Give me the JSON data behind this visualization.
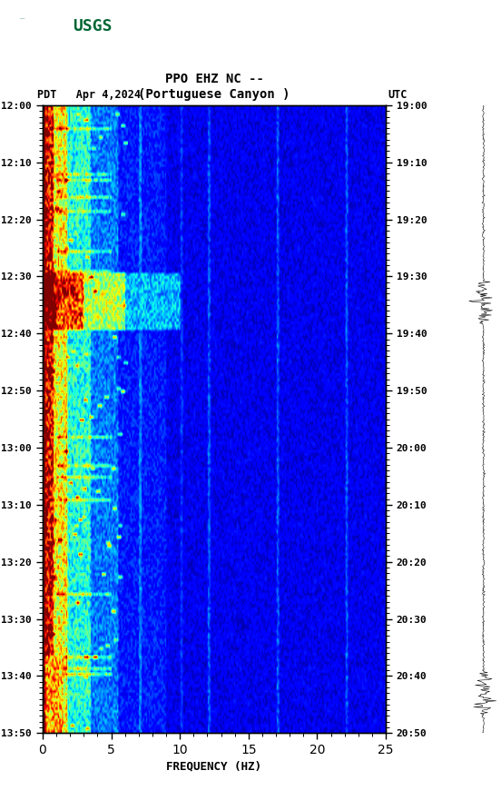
{
  "title_line1": "PPO EHZ NC --",
  "title_line2": "(Portuguese Canyon )",
  "left_label": "PDT   Apr 4,2024",
  "right_label": "UTC",
  "xlabel": "FREQUENCY (HZ)",
  "freq_min": 0,
  "freq_max": 25,
  "ytick_labels_left": [
    "12:00",
    "12:10",
    "12:20",
    "12:30",
    "12:40",
    "12:50",
    "13:00",
    "13:10",
    "13:20",
    "13:30",
    "13:40",
    "13:50"
  ],
  "ytick_labels_right": [
    "19:00",
    "19:10",
    "19:20",
    "19:30",
    "19:40",
    "19:50",
    "20:00",
    "20:10",
    "20:20",
    "20:30",
    "20:40",
    "20:50"
  ],
  "xtick_major": [
    0,
    5,
    10,
    15,
    20,
    25
  ],
  "background_color": "#ffffff",
  "fig_width": 5.52,
  "fig_height": 8.92,
  "usgs_color": "#006633"
}
